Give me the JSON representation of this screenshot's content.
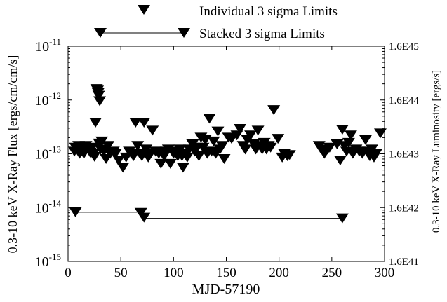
{
  "chart_data": {
    "type": "scatter",
    "title": "",
    "xlabel": "MJD-57190",
    "ylabel": "0.3-10 keV X-Ray Flux [ergs/cm/cm/s]",
    "y2label": "0.3-10 keV X-Ray Luminosity [ergs/s]",
    "x_ticks": [
      "0",
      "50",
      "100",
      "150",
      "200",
      "250",
      "300"
    ],
    "y_ticks": [
      {
        "base": "10",
        "exp": "-15"
      },
      {
        "base": "10",
        "exp": "-14"
      },
      {
        "base": "10",
        "exp": "-13"
      },
      {
        "base": "10",
        "exp": "-12"
      },
      {
        "base": "10",
        "exp": "-11"
      }
    ],
    "y2_ticks": [
      "1.6E41",
      "1.6E42",
      "1.6E43",
      "1.6E44",
      "1.6E45"
    ],
    "xlim": [
      0,
      300
    ],
    "ylim": [
      1e-15,
      1e-11
    ],
    "yscale": "log",
    "y2lim": [
      1.6e+41,
      1.6e+45
    ],
    "legend": {
      "placement": "top",
      "entries": [
        "Individual 3 sigma Limits",
        "Stacked 3 sigma Limits"
      ]
    },
    "series": [
      {
        "name": "Individual 3 sigma Limits",
        "marker": "down-triangle",
        "points": [
          [
            6,
            1.1e-13
          ],
          [
            7,
            1.3e-13
          ],
          [
            10,
            1.4e-13
          ],
          [
            11,
            1e-13
          ],
          [
            13,
            1.2e-13
          ],
          [
            15,
            1e-13
          ],
          [
            17,
            1.4e-13
          ],
          [
            19,
            1.2e-13
          ],
          [
            21,
            1.05e-13
          ],
          [
            23,
            1.3e-13
          ],
          [
            24,
            1e-13
          ],
          [
            25,
            8.8e-14
          ],
          [
            26,
            3.8e-13
          ],
          [
            27,
            1.6e-12
          ],
          [
            28,
            1.5e-12
          ],
          [
            28.5,
            1.35e-12
          ],
          [
            29,
            1.2e-12
          ],
          [
            29.5,
            1.55e-13
          ],
          [
            30,
            9.5e-13
          ],
          [
            31,
            1.2e-13
          ],
          [
            32,
            1.7e-13
          ],
          [
            34,
            1.1e-13
          ],
          [
            36,
            8e-14
          ],
          [
            38,
            1.4e-13
          ],
          [
            40,
            1e-13
          ],
          [
            43,
            1.1e-13
          ],
          [
            45,
            1e-13
          ],
          [
            48,
            7.5e-14
          ],
          [
            52,
            5.5e-14
          ],
          [
            55,
            8.5e-14
          ],
          [
            58,
            1.1e-13
          ],
          [
            60,
            1e-13
          ],
          [
            62,
            9e-14
          ],
          [
            64,
            3.8e-13
          ],
          [
            66,
            1.4e-13
          ],
          [
            68,
            1e-13
          ],
          [
            70,
            9e-14
          ],
          [
            72,
            3.8e-13
          ],
          [
            74,
            1.2e-13
          ],
          [
            76,
            8.5e-14
          ],
          [
            78,
            1e-13
          ],
          [
            80,
            2.7e-13
          ],
          [
            83,
            1.1e-13
          ],
          [
            86,
            1e-13
          ],
          [
            88,
            6.5e-14
          ],
          [
            91,
            9e-14
          ],
          [
            93,
            1.1e-13
          ],
          [
            95,
            1.2e-13
          ],
          [
            97,
            6.5e-14
          ],
          [
            100,
            1e-13
          ],
          [
            102,
            1.1e-13
          ],
          [
            104,
            9e-14
          ],
          [
            106,
            1.2e-13
          ],
          [
            108,
            9e-14
          ],
          [
            109,
            5.5e-14
          ],
          [
            111,
            1e-13
          ],
          [
            113,
            8.5e-14
          ],
          [
            115,
            1.2e-13
          ],
          [
            118,
            1.5e-13
          ],
          [
            120,
            1.1e-13
          ],
          [
            122,
            1.3e-13
          ],
          [
            124,
            9e-14
          ],
          [
            126,
            2e-13
          ],
          [
            128,
            1.3e-13
          ],
          [
            130,
            1.8e-13
          ],
          [
            132,
            1e-13
          ],
          [
            134,
            4.5e-13
          ],
          [
            136,
            1.1e-13
          ],
          [
            138,
            1.7e-13
          ],
          [
            140,
            1e-13
          ],
          [
            142,
            2.6e-13
          ],
          [
            144,
            1.2e-13
          ],
          [
            146,
            1.4e-13
          ],
          [
            148,
            8e-14
          ],
          [
            152,
            2e-13
          ],
          [
            155,
            1.9e-13
          ],
          [
            160,
            2.2e-13
          ],
          [
            163,
            2.9e-13
          ],
          [
            166,
            1.4e-13
          ],
          [
            168,
            1.2e-13
          ],
          [
            170,
            1.8e-13
          ],
          [
            173,
            2.2e-13
          ],
          [
            176,
            1.5e-13
          ],
          [
            178,
            1.2e-13
          ],
          [
            180,
            2.7e-13
          ],
          [
            182,
            1.4e-13
          ],
          [
            184,
            1.2e-13
          ],
          [
            186,
            1.6e-13
          ],
          [
            188,
            1.2e-13
          ],
          [
            190,
            1.4e-13
          ],
          [
            192,
            1.3e-13
          ],
          [
            195,
            6.5e-13
          ],
          [
            199,
            1.9e-13
          ],
          [
            203,
            8.5e-14
          ],
          [
            205,
            1e-13
          ],
          [
            208,
            9e-14
          ],
          [
            210,
            9.5e-14
          ],
          [
            238,
            1.4e-13
          ],
          [
            240,
            1.2e-13
          ],
          [
            243,
            1e-13
          ],
          [
            246,
            1.2e-13
          ],
          [
            248,
            1.3e-13
          ],
          [
            255,
            1.5e-13
          ],
          [
            258,
            7.5e-14
          ],
          [
            260,
            2.8e-13
          ],
          [
            262,
            1.4e-13
          ],
          [
            264,
            1.1e-13
          ],
          [
            266,
            1.6e-13
          ],
          [
            268,
            2.2e-13
          ],
          [
            270,
            1e-13
          ],
          [
            273,
            1.2e-13
          ],
          [
            276,
            1.1e-13
          ],
          [
            279,
            1e-13
          ],
          [
            282,
            1.8e-13
          ],
          [
            284,
            1.1e-13
          ],
          [
            286,
            9e-14
          ],
          [
            288,
            1.2e-13
          ],
          [
            290,
            8.5e-14
          ],
          [
            292,
            1e-13
          ],
          [
            296,
            2.4e-13
          ]
        ]
      },
      {
        "name": "Stacked 3 sigma Limits",
        "marker": "down-triangle",
        "segments": [
          {
            "x0": 7,
            "x1": 71,
            "y": 8.2e-15
          },
          {
            "x0": 71,
            "x1": 260,
            "y": 6.3e-15
          }
        ],
        "points": [
          [
            7,
            8.2e-15
          ],
          [
            69,
            8e-15
          ],
          [
            72,
            6.5e-15
          ],
          [
            260,
            6.3e-15
          ]
        ]
      }
    ]
  }
}
